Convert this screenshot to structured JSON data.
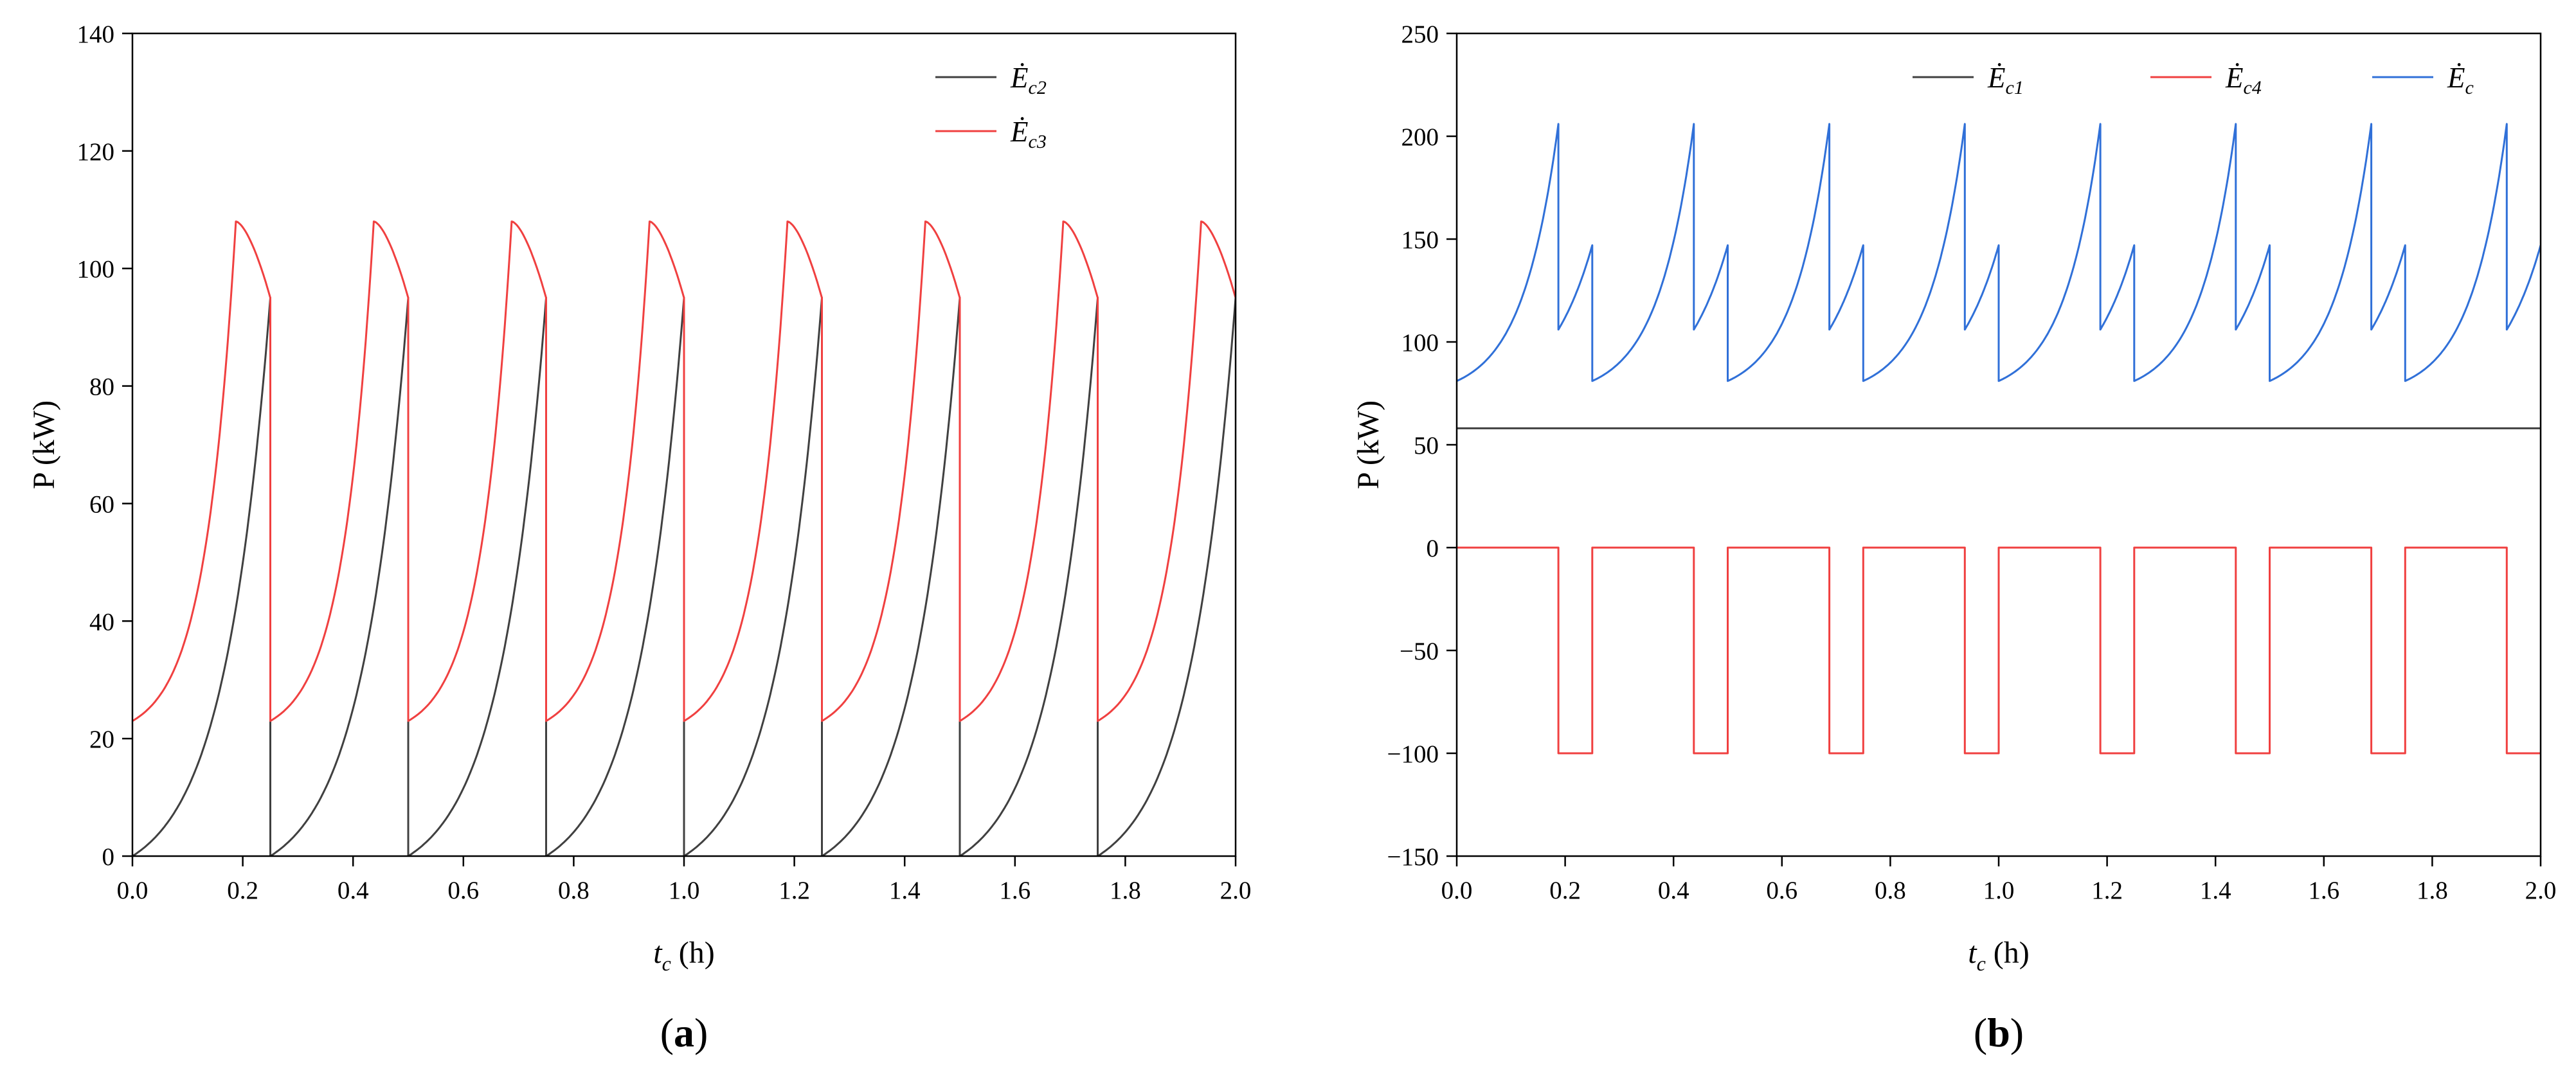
{
  "chart_data": [
    {
      "type": "line",
      "panel_label": "a",
      "xlabel": "t_c (h)",
      "ylabel": "P (kW)",
      "xlim": [
        0,
        2.0
      ],
      "ylim": [
        0,
        140
      ],
      "xticks": [
        "0.0",
        "0.2",
        "0.4",
        "0.6",
        "0.8",
        "1.0",
        "1.2",
        "1.4",
        "1.6",
        "1.8",
        "2.0"
      ],
      "yticks": [
        "0",
        "20",
        "40",
        "60",
        "80",
        "100",
        "120",
        "140"
      ],
      "legend_position": "top-right",
      "period_h": 0.25,
      "series": [
        {
          "name": "Ė_c2",
          "label_main": "Ė",
          "label_sub": "c2",
          "color": "#404040",
          "cycle_shape": "exponential rise from 0 to 95 kW over each 0.25 h cycle, then drop to 0",
          "x": [
            0,
            0.05,
            0.1,
            0.15,
            0.2,
            0.25
          ],
          "y": [
            0,
            7,
            17,
            33,
            57,
            95
          ]
        },
        {
          "name": "Ė_c3",
          "label_main": "Ė",
          "label_sub": "c3",
          "color": "#f04040",
          "cycle_shape": "rise from 23 kW to peak 108 kW at 0.1875 h, fall to 95 kW at 0.25 h, then drop to 23",
          "x": [
            0,
            0.05,
            0.1,
            0.15,
            0.1875,
            0.22,
            0.25
          ],
          "y": [
            23,
            33,
            51,
            80,
            108,
            103,
            95
          ]
        }
      ]
    },
    {
      "type": "line",
      "panel_label": "b",
      "xlabel": "t_c (h)",
      "ylabel": "P (kW)",
      "xlim": [
        0,
        2.0
      ],
      "ylim": [
        -150,
        250
      ],
      "xticks": [
        "0.0",
        "0.2",
        "0.4",
        "0.6",
        "0.8",
        "1.0",
        "1.2",
        "1.4",
        "1.6",
        "1.8",
        "2.0"
      ],
      "yticks": [
        "-150",
        "-100",
        "-50",
        "0",
        "50",
        "100",
        "150",
        "200",
        "250"
      ],
      "legend_position": "top",
      "period_h": 0.25,
      "series": [
        {
          "name": "Ė_c1",
          "label_main": "Ė",
          "label_sub": "c1",
          "color": "#404040",
          "cycle_shape": "constant",
          "x": [
            0,
            2.0
          ],
          "y": [
            58,
            58
          ]
        },
        {
          "name": "Ė_c4",
          "label_main": "Ė",
          "label_sub": "c4",
          "color": "#f04040",
          "cycle_shape": "0 kW from 0 to 0.1875 h, then -100 kW from 0.1875 to 0.25 h",
          "x": [
            0,
            0.1875,
            0.1875,
            0.25
          ],
          "y": [
            0,
            0,
            -100,
            -100
          ]
        },
        {
          "name": "Ė_c",
          "label_main": "Ė",
          "label_sub": "c",
          "color": "#3070d8",
          "cycle_shape": "rise 81→206 kW over 0–0.1875 h, drop to 106, rise to 147 at 0.25 h, drop to 81",
          "x": [
            0,
            0.05,
            0.1,
            0.15,
            0.1875,
            0.1875,
            0.22,
            0.25
          ],
          "y": [
            81,
            89,
            106,
            140,
            206,
            106,
            121,
            147
          ]
        }
      ]
    }
  ]
}
